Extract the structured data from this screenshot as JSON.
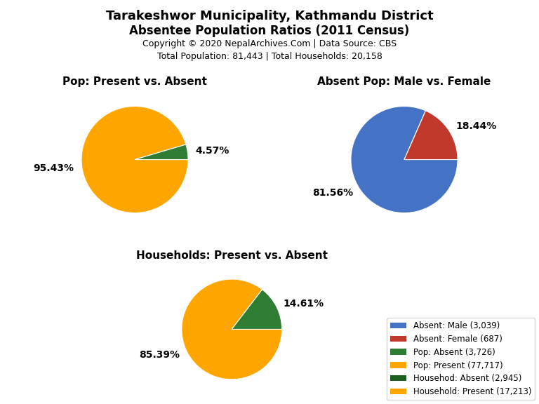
{
  "title": "Tarakeshwor Municipality, Kathmandu District",
  "subtitle": "Absentee Population Ratios (2011 Census)",
  "annotations": [
    "Copyright © 2020 NepalArchives.Com | Data Source: CBS",
    "Total Population: 81,443 | Total Households: 20,158"
  ],
  "series": [
    {
      "name": "Absent: Male (3,039)",
      "color": "#4472C4"
    },
    {
      "name": "Absent: Female (687)",
      "color": "#C0392B"
    },
    {
      "name": "Pop: Absent (3,726)",
      "color": "#2E7D32"
    },
    {
      "name": "Pop: Present (77,717)",
      "color": "#FFA500"
    },
    {
      "name": "Househod: Absent (2,945)",
      "color": "#1B5E20"
    },
    {
      "name": "Household: Present (17,213)",
      "color": "#FFA500"
    }
  ],
  "legend": "lower right",
  "chart_data": [
    {
      "type": "pie",
      "title": "Pop: Present vs. Absent",
      "values": [
        95.43,
        4.57
      ],
      "value_labels": [
        "95.43%",
        "4.57%"
      ],
      "colors": [
        "#FFA500",
        "#2E7D32"
      ],
      "data_labels": true
    },
    {
      "type": "pie",
      "title": "Absent Pop: Male vs. Female",
      "values": [
        81.56,
        18.44
      ],
      "value_labels": [
        "81.56%",
        "18.44%"
      ],
      "colors": [
        "#4472C4",
        "#C0392B"
      ],
      "data_labels": true
    },
    {
      "type": "pie",
      "title": "Households: Present vs. Absent",
      "values": [
        85.39,
        14.61
      ],
      "value_labels": [
        "85.39%",
        "14.61%"
      ],
      "colors": [
        "#FFA500",
        "#2E7D32"
      ],
      "data_labels": true
    }
  ]
}
